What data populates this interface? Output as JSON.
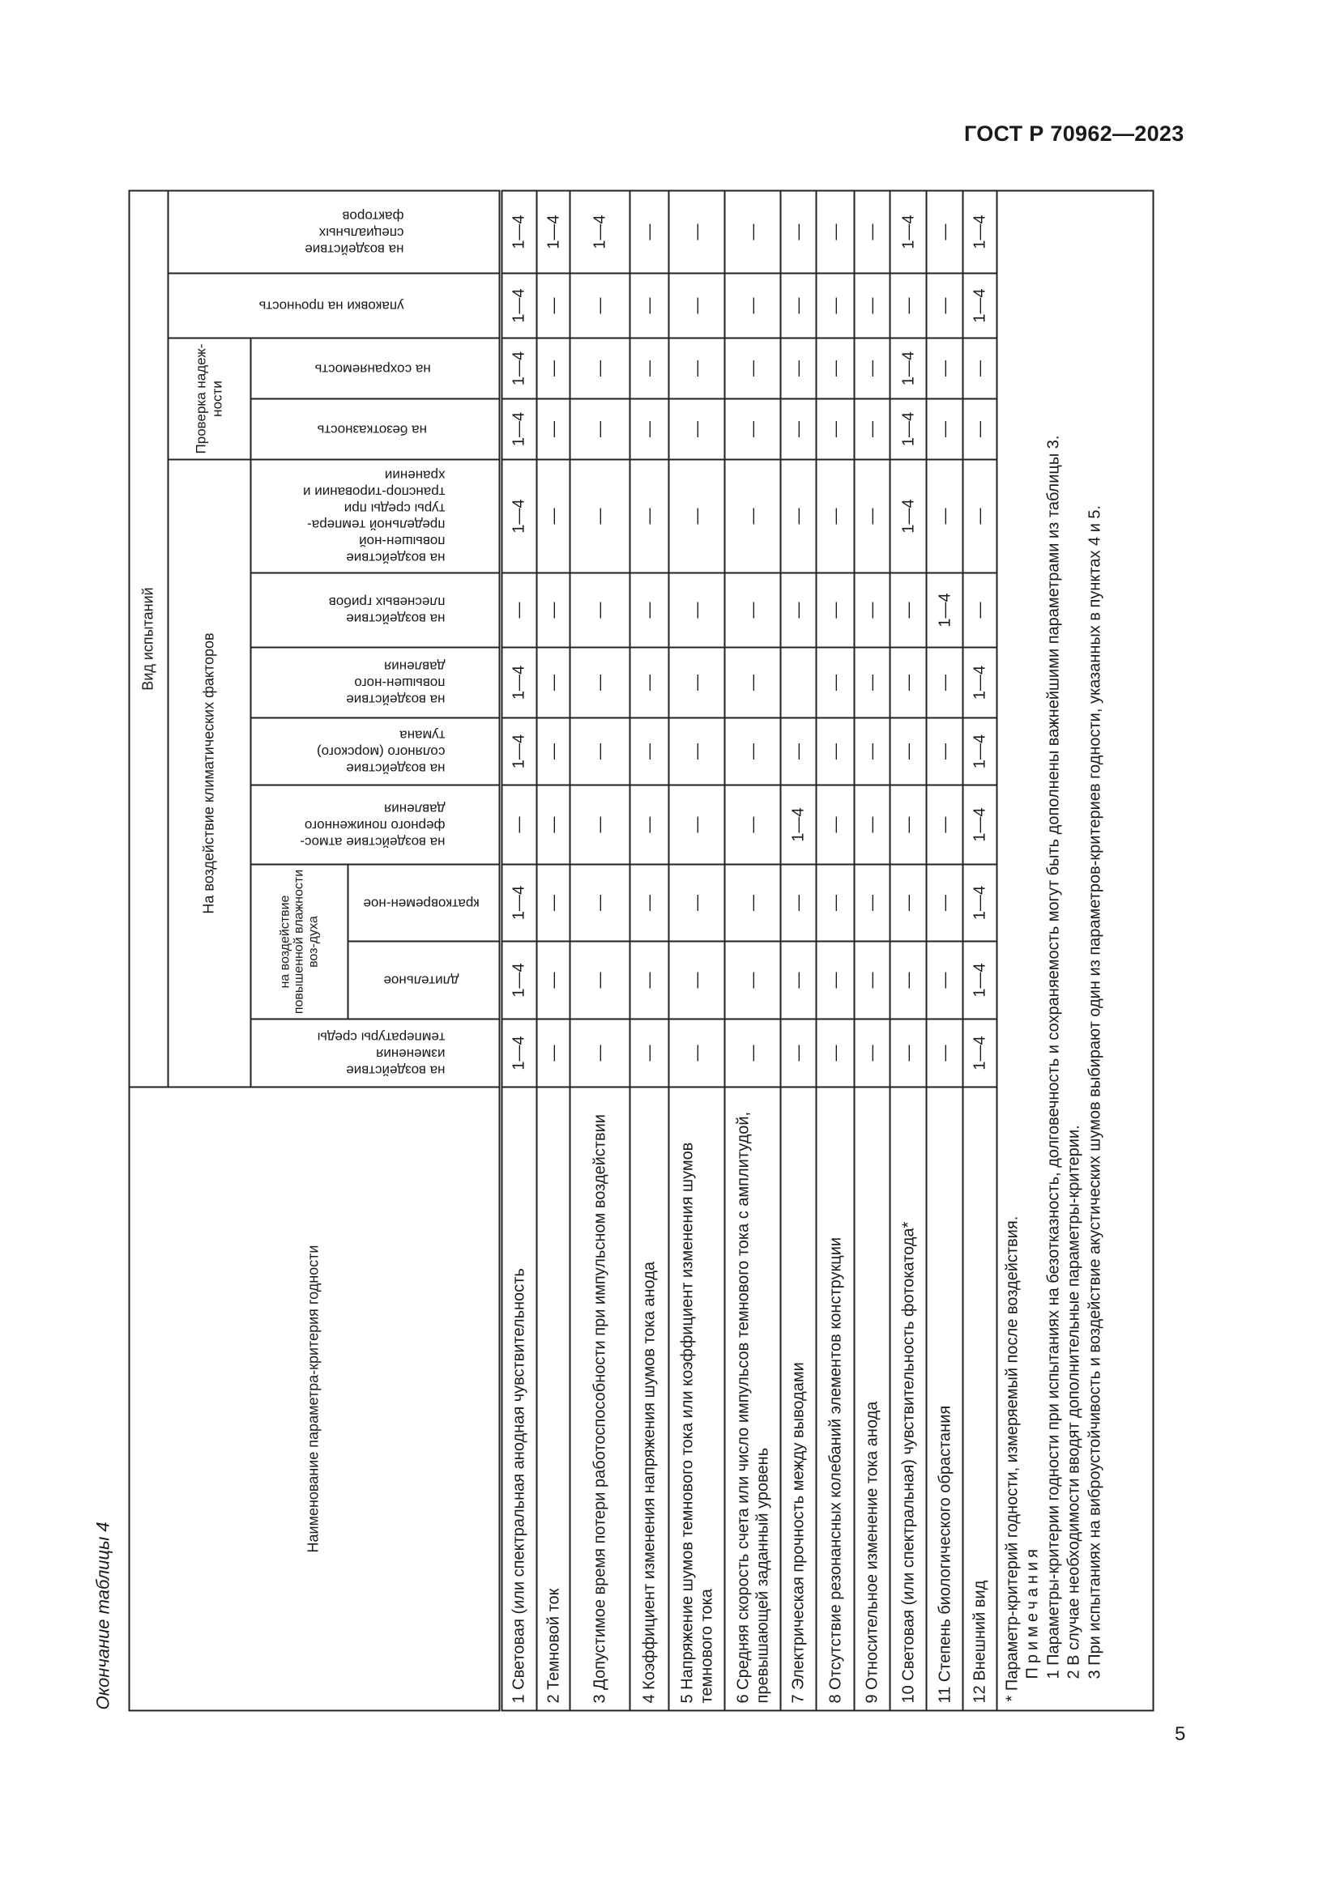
{
  "document_id": "ГОСТ Р 70962—2023",
  "page_number": "5",
  "caption": "Окончание таблицы 4",
  "header": {
    "name_column": "Наименование параметра-критерия годности",
    "test_type": "Вид испытаний",
    "climatic_group": "На воздействие климатических факторов",
    "reliability_group": "Проверка надеж-ности",
    "humidity_group": "на воздействие повышенной влажности воз-духа",
    "columns": [
      "на воздействие изменения температуры среды",
      "длительное",
      "кратковремен-ное",
      "на воздействие атмос-ферного пониженного давления",
      "на воздействие соляного (морского) тумана",
      "на воздействие повышен-ного давления",
      "на воздействие плесневых грибов",
      "на воздействие повышен-ной предельной темпера-туры среды при транспор-тировании и хранении",
      "на безотказность",
      "на сохраняемость",
      "упаковки на прочность",
      "на воздействие специальных факторов"
    ]
  },
  "rows": [
    {
      "name": "1 Световая (или спектральная анодная чувствительность",
      "values": [
        "1—4",
        "1—4",
        "1—4",
        "—",
        "1—4",
        "1—4",
        "—",
        "1—4",
        "1—4",
        "1—4",
        "1—4",
        "1—4"
      ]
    },
    {
      "name": "2 Темновой ток",
      "values": [
        "—",
        "—",
        "—",
        "—",
        "—",
        "—",
        "—",
        "—",
        "—",
        "—",
        "—",
        "1—4"
      ]
    },
    {
      "name": "3 Допустимое время потери работоспособности при импульсном воздействии",
      "values": [
        "—",
        "—",
        "—",
        "—",
        "—",
        "—",
        "—",
        "—",
        "—",
        "—",
        "—",
        "1—4"
      ]
    },
    {
      "name": "4 Коэффициент изменения напряжения шумов тока анода",
      "values": [
        "—",
        "—",
        "—",
        "—",
        "—",
        "—",
        "—",
        "—",
        "—",
        "—",
        "—",
        "—"
      ]
    },
    {
      "name": "5 Напряжение шумов темнового тока или коэффициент изменения шумов темнового тока",
      "values": [
        "—",
        "—",
        "—",
        "—",
        "—",
        "—",
        "—",
        "—",
        "—",
        "—",
        "—",
        "—"
      ]
    },
    {
      "name": "6 Средняя скорость счета или число импульсов темнового тока с амплитудой, превышающей заданный уровень",
      "values": [
        "—",
        "—",
        "—",
        "—",
        "—",
        "—",
        "—",
        "—",
        "—",
        "—",
        "—",
        "—"
      ]
    },
    {
      "name": "7 Электрическая прочность между выводами",
      "values": [
        "—",
        "—",
        "—",
        "1—4",
        "—",
        "",
        "—",
        "—",
        "—",
        "—",
        "—",
        "—"
      ]
    },
    {
      "name": "8 Отсутствие резонансных колебаний элементов конструкции",
      "values": [
        "—",
        "—",
        "—",
        "—",
        "—",
        "—",
        "—",
        "—",
        "—",
        "—",
        "—",
        "—"
      ]
    },
    {
      "name": "9 Относительное изменение тока анода",
      "values": [
        "—",
        "—",
        "—",
        "—",
        "—",
        "—",
        "—",
        "—",
        "—",
        "—",
        "—",
        "—"
      ]
    },
    {
      "name": "10 Световая (или спектральная) чувствительность фотокатода*",
      "values": [
        "—",
        "—",
        "—",
        "—",
        "—",
        "—",
        "—",
        "1—4",
        "1—4",
        "1—4",
        "—",
        "1—4"
      ]
    },
    {
      "name": "11 Степень биологического обрастания",
      "values": [
        "—",
        "—",
        "—",
        "—",
        "—",
        "—",
        "1—4",
        "—",
        "—",
        "—",
        "—",
        "—"
      ]
    },
    {
      "name": "12 Внешний вид",
      "values": [
        "1—4",
        "1—4",
        "1—4",
        "1—4",
        "1—4",
        "1—4",
        "—",
        "—",
        "—",
        "—",
        "1—4",
        "1—4"
      ]
    }
  ],
  "notes": {
    "footnote": "* Параметр-критерий годности, измеряемый после воздействия.",
    "title": "Примечания",
    "items": [
      "1 Параметры-критерии годности при испытаниях на безотказность, долговечность и сохраняемость могут быть дополнены важнейшими параметрами из таблицы 3.",
      "2 В случае необходимости вводят дополнительные параметры-критерии.",
      "3 При испытаниях на виброустойчивость и воздействие акустических шумов выбирают один из параметров-критериев годности, указанных в пунктах 4 и 5."
    ]
  }
}
